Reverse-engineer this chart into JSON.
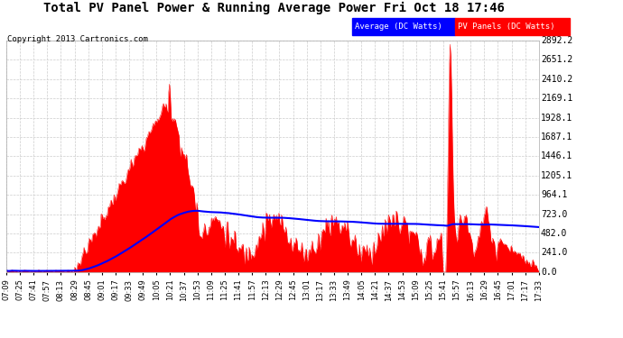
{
  "title": "Total PV Panel Power & Running Average Power Fri Oct 18 17:46",
  "copyright": "Copyright 2013 Cartronics.com",
  "legend_avg": "Average (DC Watts)",
  "legend_pv": "PV Panels (DC Watts)",
  "bg_color": "#ffffff",
  "plot_bg_color": "#ffffff",
  "grid_color": "#cccccc",
  "pv_color": "#ff0000",
  "avg_color": "#0000ff",
  "yticks": [
    0.0,
    241.0,
    482.0,
    723.0,
    964.1,
    1205.1,
    1446.1,
    1687.1,
    1928.1,
    2169.1,
    2410.2,
    2651.2,
    2892.2
  ],
  "ymax": 2892.2,
  "xtick_labels": [
    "07:09",
    "07:25",
    "07:41",
    "07:57",
    "08:13",
    "08:29",
    "08:45",
    "09:01",
    "09:17",
    "09:33",
    "09:49",
    "10:05",
    "10:21",
    "10:37",
    "10:53",
    "11:09",
    "11:25",
    "11:41",
    "11:57",
    "12:13",
    "12:29",
    "12:45",
    "13:01",
    "13:17",
    "13:33",
    "13:49",
    "14:05",
    "14:21",
    "14:37",
    "14:53",
    "15:09",
    "15:25",
    "15:41",
    "15:57",
    "16:13",
    "16:29",
    "16:45",
    "17:01",
    "17:17",
    "17:33"
  ]
}
